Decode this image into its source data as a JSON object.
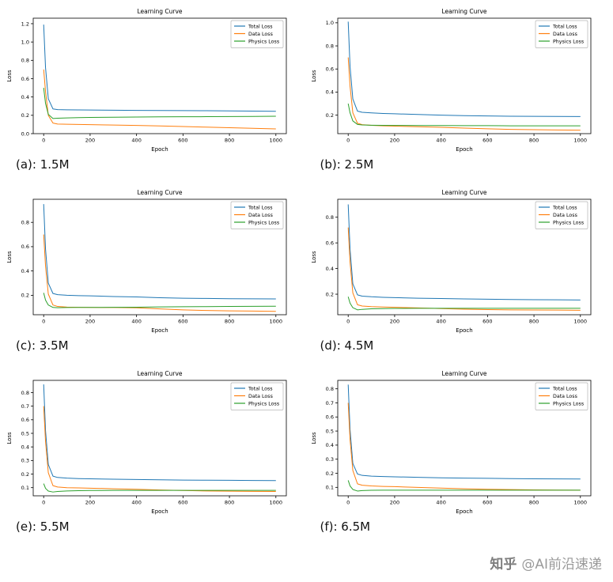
{
  "page": {
    "background": "#ffffff"
  },
  "watermark": {
    "brand": "知乎",
    "handle": "@AI前沿速递"
  },
  "chart_data": [
    {
      "type": "line",
      "title": "Learning Curve",
      "caption": "(a): 1.5M",
      "xlabel": "Epoch",
      "ylabel": "Loss",
      "xlim": [
        -45,
        1045
      ],
      "x_ticks": [
        0,
        200,
        400,
        600,
        800,
        1000
      ],
      "ylim": [
        0.0,
        1.26
      ],
      "y_ticks": [
        0.0,
        0.2,
        0.4,
        0.6,
        0.8,
        1.0,
        1.2
      ],
      "grid": false,
      "legend_position": "upper right",
      "x": [
        0,
        8,
        20,
        40,
        60,
        100,
        150,
        200,
        300,
        400,
        500,
        600,
        700,
        800,
        900,
        1000
      ],
      "series": [
        {
          "name": "Total Loss",
          "color": "#1f77b4",
          "values": [
            1.19,
            0.72,
            0.38,
            0.27,
            0.262,
            0.26,
            0.259,
            0.258,
            0.256,
            0.254,
            0.252,
            0.251,
            0.25,
            0.248,
            0.246,
            0.244
          ]
        },
        {
          "name": "Data Loss",
          "color": "#ff7f0e",
          "values": [
            0.7,
            0.46,
            0.2,
            0.115,
            0.105,
            0.102,
            0.1,
            0.098,
            0.094,
            0.09,
            0.084,
            0.078,
            0.071,
            0.065,
            0.058,
            0.052
          ]
        },
        {
          "name": "Physics Loss",
          "color": "#2ca02c",
          "values": [
            0.5,
            0.33,
            0.21,
            0.165,
            0.168,
            0.172,
            0.175,
            0.177,
            0.179,
            0.181,
            0.183,
            0.184,
            0.185,
            0.187,
            0.188,
            0.19
          ]
        }
      ]
    },
    {
      "type": "line",
      "title": "Learning Curve",
      "caption": "(b): 2.5M",
      "xlabel": "Epoch",
      "ylabel": "Loss",
      "xlim": [
        -45,
        1045
      ],
      "x_ticks": [
        0,
        200,
        400,
        600,
        800,
        1000
      ],
      "ylim": [
        0.04,
        1.04
      ],
      "y_ticks": [
        0.2,
        0.4,
        0.6,
        0.8,
        1.0
      ],
      "grid": false,
      "legend_position": "upper right",
      "x": [
        0,
        8,
        20,
        40,
        60,
        100,
        150,
        200,
        300,
        400,
        500,
        600,
        700,
        800,
        900,
        1000
      ],
      "series": [
        {
          "name": "Total Loss",
          "color": "#1f77b4",
          "values": [
            1.01,
            0.62,
            0.34,
            0.235,
            0.225,
            0.22,
            0.215,
            0.212,
            0.206,
            0.2,
            0.196,
            0.193,
            0.191,
            0.19,
            0.189,
            0.188
          ]
        },
        {
          "name": "Data Loss",
          "color": "#ff7f0e",
          "values": [
            0.7,
            0.45,
            0.22,
            0.13,
            0.118,
            0.112,
            0.108,
            0.105,
            0.1,
            0.095,
            0.088,
            0.082,
            0.077,
            0.074,
            0.072,
            0.07
          ]
        },
        {
          "name": "Physics Loss",
          "color": "#2ca02c",
          "values": [
            0.3,
            0.22,
            0.15,
            0.12,
            0.115,
            0.113,
            0.112,
            0.111,
            0.11,
            0.11,
            0.109,
            0.109,
            0.108,
            0.108,
            0.108,
            0.108
          ]
        }
      ]
    },
    {
      "type": "line",
      "title": "Learning Curve",
      "caption": "(c): 3.5M",
      "xlabel": "Epoch",
      "ylabel": "Loss",
      "xlim": [
        -45,
        1045
      ],
      "x_ticks": [
        0,
        200,
        400,
        600,
        800,
        1000
      ],
      "ylim": [
        0.04,
        0.99
      ],
      "y_ticks": [
        0.2,
        0.4,
        0.6,
        0.8
      ],
      "grid": false,
      "legend_position": "upper right",
      "x": [
        0,
        8,
        20,
        40,
        60,
        100,
        150,
        200,
        300,
        400,
        500,
        600,
        700,
        800,
        900,
        1000
      ],
      "series": [
        {
          "name": "Total Loss",
          "color": "#1f77b4",
          "values": [
            0.95,
            0.58,
            0.3,
            0.215,
            0.205,
            0.2,
            0.197,
            0.195,
            0.19,
            0.186,
            0.18,
            0.176,
            0.174,
            0.172,
            0.171,
            0.17
          ]
        },
        {
          "name": "Data Loss",
          "color": "#ff7f0e",
          "values": [
            0.7,
            0.44,
            0.21,
            0.12,
            0.108,
            0.103,
            0.101,
            0.1,
            0.099,
            0.097,
            0.088,
            0.08,
            0.075,
            0.072,
            0.07,
            0.068
          ]
        },
        {
          "name": "Physics Loss",
          "color": "#2ca02c",
          "values": [
            0.22,
            0.16,
            0.12,
            0.1,
            0.098,
            0.099,
            0.1,
            0.1,
            0.101,
            0.102,
            0.104,
            0.106,
            0.107,
            0.108,
            0.109,
            0.11
          ]
        }
      ]
    },
    {
      "type": "line",
      "title": "Learning Curve",
      "caption": "(d): 4.5M",
      "xlabel": "Epoch",
      "ylabel": "Loss",
      "xlim": [
        -45,
        1045
      ],
      "x_ticks": [
        0,
        200,
        400,
        600,
        800,
        1000
      ],
      "ylim": [
        0.04,
        0.94
      ],
      "y_ticks": [
        0.2,
        0.4,
        0.6,
        0.8
      ],
      "grid": false,
      "legend_position": "upper right",
      "x": [
        0,
        8,
        20,
        40,
        60,
        100,
        150,
        200,
        300,
        400,
        500,
        600,
        700,
        800,
        900,
        1000
      ],
      "series": [
        {
          "name": "Total Loss",
          "color": "#1f77b4",
          "values": [
            0.9,
            0.55,
            0.28,
            0.195,
            0.185,
            0.18,
            0.176,
            0.173,
            0.169,
            0.166,
            0.163,
            0.161,
            0.159,
            0.157,
            0.156,
            0.155
          ]
        },
        {
          "name": "Data Loss",
          "color": "#ff7f0e",
          "values": [
            0.72,
            0.45,
            0.21,
            0.118,
            0.108,
            0.103,
            0.1,
            0.098,
            0.093,
            0.088,
            0.083,
            0.08,
            0.078,
            0.077,
            0.076,
            0.075
          ]
        },
        {
          "name": "Physics Loss",
          "color": "#2ca02c",
          "values": [
            0.18,
            0.13,
            0.095,
            0.078,
            0.082,
            0.086,
            0.088,
            0.089,
            0.09,
            0.09,
            0.09,
            0.09,
            0.09,
            0.09,
            0.09,
            0.09
          ]
        }
      ]
    },
    {
      "type": "line",
      "title": "Learning Curve",
      "caption": "(e): 5.5M",
      "xlabel": "Epoch",
      "ylabel": "Loss",
      "xlim": [
        -45,
        1045
      ],
      "x_ticks": [
        0,
        200,
        400,
        600,
        800,
        1000
      ],
      "ylim": [
        0.04,
        0.89
      ],
      "y_ticks": [
        0.1,
        0.2,
        0.3,
        0.4,
        0.5,
        0.6,
        0.7,
        0.8
      ],
      "grid": false,
      "legend_position": "upper right",
      "x": [
        0,
        8,
        20,
        40,
        60,
        100,
        150,
        200,
        300,
        400,
        500,
        600,
        700,
        800,
        900,
        1000
      ],
      "series": [
        {
          "name": "Total Loss",
          "color": "#1f77b4",
          "values": [
            0.86,
            0.52,
            0.27,
            0.185,
            0.175,
            0.17,
            0.167,
            0.165,
            0.162,
            0.16,
            0.158,
            0.156,
            0.155,
            0.154,
            0.153,
            0.152
          ]
        },
        {
          "name": "Data Loss",
          "color": "#ff7f0e",
          "values": [
            0.7,
            0.44,
            0.21,
            0.115,
            0.105,
            0.1,
            0.098,
            0.096,
            0.092,
            0.088,
            0.083,
            0.079,
            0.076,
            0.074,
            0.073,
            0.072
          ]
        },
        {
          "name": "Physics Loss",
          "color": "#2ca02c",
          "values": [
            0.13,
            0.095,
            0.075,
            0.068,
            0.072,
            0.076,
            0.078,
            0.079,
            0.08,
            0.08,
            0.08,
            0.08,
            0.08,
            0.08,
            0.08,
            0.08
          ]
        }
      ]
    },
    {
      "type": "line",
      "title": "Learning Curve",
      "caption": "(f): 6.5M",
      "xlabel": "Epoch",
      "ylabel": "Loss",
      "xlim": [
        -45,
        1045
      ],
      "x_ticks": [
        0,
        200,
        400,
        600,
        800,
        1000
      ],
      "ylim": [
        0.04,
        0.86
      ],
      "y_ticks": [
        0.1,
        0.2,
        0.3,
        0.4,
        0.5,
        0.6,
        0.7,
        0.8
      ],
      "grid": false,
      "legend_position": "upper right",
      "x": [
        0,
        8,
        20,
        40,
        60,
        100,
        150,
        200,
        300,
        400,
        500,
        600,
        700,
        800,
        900,
        1000
      ],
      "series": [
        {
          "name": "Total Loss",
          "color": "#1f77b4",
          "values": [
            0.83,
            0.51,
            0.27,
            0.195,
            0.185,
            0.18,
            0.177,
            0.175,
            0.171,
            0.168,
            0.166,
            0.164,
            0.162,
            0.161,
            0.16,
            0.159
          ]
        },
        {
          "name": "Data Loss",
          "color": "#ff7f0e",
          "values": [
            0.7,
            0.44,
            0.22,
            0.125,
            0.115,
            0.11,
            0.107,
            0.105,
            0.1,
            0.095,
            0.09,
            0.086,
            0.084,
            0.082,
            0.081,
            0.08
          ]
        },
        {
          "name": "Physics Loss",
          "color": "#2ca02c",
          "values": [
            0.15,
            0.11,
            0.085,
            0.074,
            0.077,
            0.079,
            0.08,
            0.08,
            0.08,
            0.08,
            0.08,
            0.08,
            0.08,
            0.08,
            0.08,
            0.08
          ]
        }
      ]
    }
  ]
}
